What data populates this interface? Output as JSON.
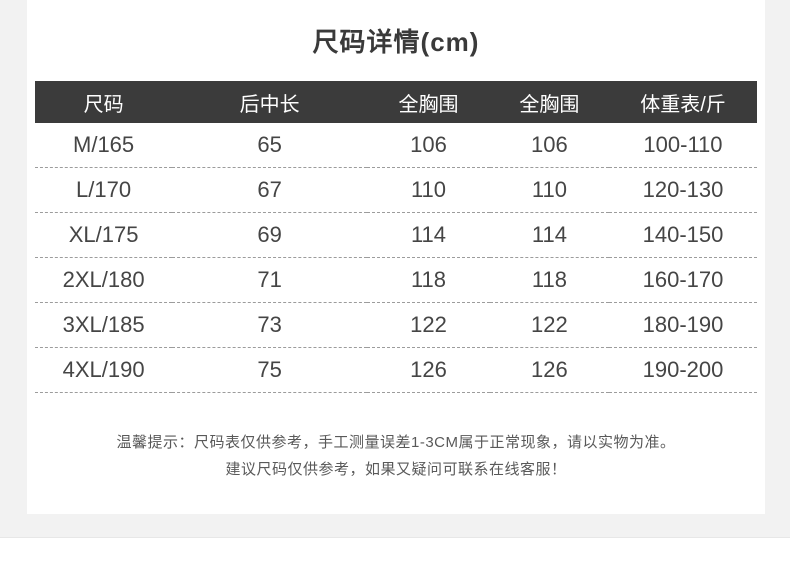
{
  "page": {
    "title": "尺码详情(cm)",
    "background_color": "#f2f2f2",
    "card_color": "#ffffff"
  },
  "table": {
    "header_bg": "#3b3b3b",
    "header_text_color": "#ffffff",
    "divider_color": "#9c9c9c",
    "columns": [
      "尺码",
      "后中长",
      "全胸围",
      "全胸围",
      "体重表/斤"
    ],
    "rows": [
      [
        "M/165",
        "65",
        "106",
        "106",
        "100-110"
      ],
      [
        "L/170",
        "67",
        "110",
        "110",
        "120-130"
      ],
      [
        "XL/175",
        "69",
        "114",
        "114",
        "140-150"
      ],
      [
        "2XL/180",
        "71",
        "118",
        "118",
        "160-170"
      ],
      [
        "3XL/185",
        "73",
        "122",
        "122",
        "180-190"
      ],
      [
        "4XL/190",
        "75",
        "126",
        "126",
        "190-200"
      ]
    ]
  },
  "notes": {
    "line1": "温馨提示：尺码表仅供参考，手工测量误差1-3CM属于正常现象，请以实物为准。",
    "line2": "建议尺码仅供参考，如果又疑问可联系在线客服！"
  },
  "chart_data": {
    "type": "table",
    "title": "尺码详情(cm)",
    "columns": [
      "尺码",
      "后中长",
      "全胸围",
      "全胸围",
      "体重表/斤"
    ],
    "rows": [
      [
        "M/165",
        "65",
        "106",
        "106",
        "100-110"
      ],
      [
        "L/170",
        "67",
        "110",
        "110",
        "120-130"
      ],
      [
        "XL/175",
        "69",
        "114",
        "114",
        "140-150"
      ],
      [
        "2XL/180",
        "71",
        "118",
        "118",
        "160-170"
      ],
      [
        "3XL/185",
        "73",
        "122",
        "122",
        "180-190"
      ],
      [
        "4XL/190",
        "75",
        "126",
        "126",
        "190-200"
      ]
    ]
  }
}
